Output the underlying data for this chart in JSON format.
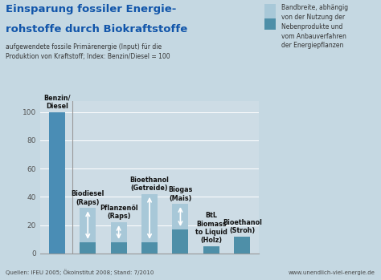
{
  "title_line1": "Einsparung fossiler Energie-",
  "title_line2": "rohstoffe durch Biokraftstoffe",
  "subtitle": "aufgewendete fossile Primärenergie (Input) für die\nProduktion von Kraftstoff; Index: Benzin/Diesel = 100",
  "legend_text": "Bandbreite, abhängig\nvon der Nutzung der\nNebenprodukte und\nvom Anbauverfahren\nder Energiepflanzen",
  "footer_left": "Quellen: IFEU 2005; Ökoinstitut 2008; Stand: 7/2010",
  "footer_right": "www.unendlich-viel-energie.de",
  "categories": [
    "Benzin/\nDiesel",
    "Biodiesel\n(Raps)",
    "Pflanzenöl\n(Raps)",
    "Bioethanol\n(Getreide)",
    "Biogas\n(Mais)",
    "BtL\nBiomass\nto Liquid\n(Holz)",
    "Bioethanol\n(Stroh)"
  ],
  "bar_max": [
    100,
    32,
    22,
    42,
    35,
    5,
    12
  ],
  "bar_min": [
    100,
    8,
    8,
    8,
    17,
    5,
    12
  ],
  "bar_color_dark": "#4e8fa8",
  "bar_color_light": "#a8c8d8",
  "bar_color_benzin": "#4a8db5",
  "fig_bg": "#c5d8e2",
  "plot_bg": "#cddce5",
  "plot_bg_upper": "#d8e5ec",
  "ylim": [
    0,
    108
  ],
  "yticks": [
    0,
    20,
    40,
    60,
    80,
    100
  ],
  "title_color": "#1155aa",
  "subtitle_color": "#333333",
  "label_color": "#111111",
  "footer_color": "#444444",
  "legend_color": "#333333"
}
